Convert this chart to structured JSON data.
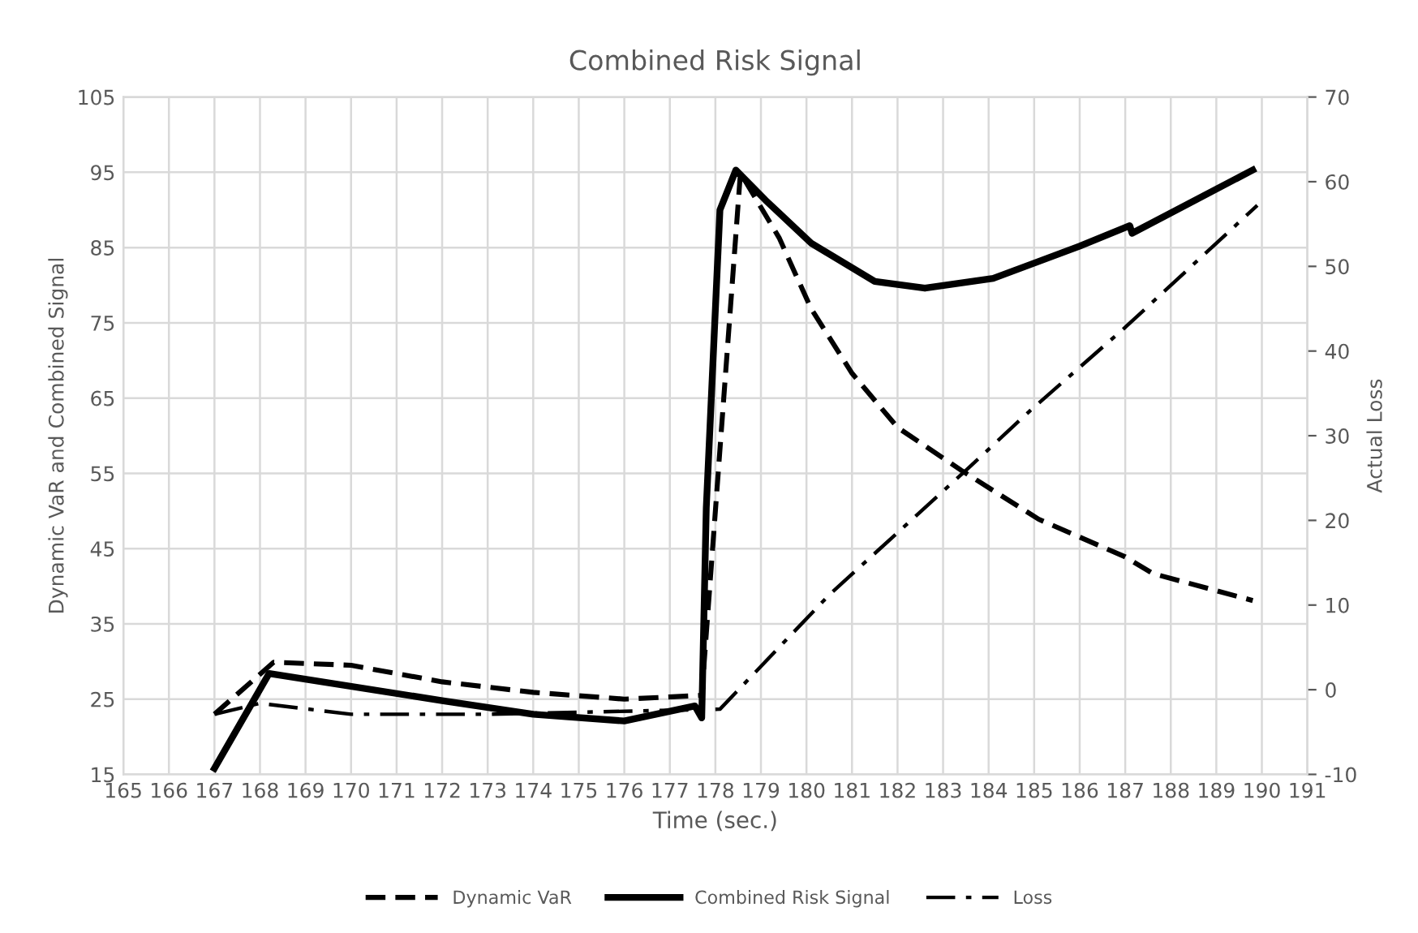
{
  "chart_data": {
    "type": "line",
    "title": "Combined Risk Signal",
    "xlabel": "Time (sec.)",
    "ylabel": "Dynamic VaR and Combined Signal",
    "y2label": "Actual Loss",
    "xlim": [
      165,
      191
    ],
    "xticks": [
      165,
      166,
      167,
      168,
      169,
      170,
      171,
      172,
      173,
      174,
      175,
      176,
      177,
      178,
      179,
      180,
      181,
      182,
      183,
      184,
      185,
      186,
      187,
      188,
      189,
      190,
      191
    ],
    "ylim": [
      15,
      105
    ],
    "yticks": [
      15,
      25,
      35,
      45,
      55,
      65,
      75,
      85,
      95,
      105
    ],
    "y2lim": [
      -10,
      70
    ],
    "y2ticks": [
      -10,
      0,
      10,
      20,
      30,
      40,
      50,
      60,
      70
    ],
    "grid": true,
    "legend": "bottom",
    "series": [
      {
        "name": "Dynamic VaR",
        "color": "#000000",
        "line_style": "dashed",
        "x": [
          167,
          168.3,
          170,
          172,
          174,
          176,
          177.7,
          178.55,
          179.4,
          180.1,
          181.0,
          182.0,
          183.4,
          185.1,
          187.0,
          187.6,
          189.8
        ],
        "values": [
          23,
          29.9,
          29.5,
          27.3,
          25.9,
          25,
          25.5,
          94.9,
          86.3,
          76.9,
          68.3,
          61.1,
          55.4,
          48.9,
          43.9,
          41.7,
          38.1
        ]
      },
      {
        "name": "Combined Risk Signal",
        "color": "#000000",
        "line_style": "solid",
        "x": [
          167,
          168.2,
          172,
          174,
          176,
          177.55,
          177.7,
          177.8,
          178.1,
          178.45,
          179.1,
          180.1,
          181.5,
          182.6,
          184.1,
          186.0,
          187.1,
          187.15,
          189.8
        ],
        "values": [
          15.8,
          28.4,
          24.8,
          23,
          22.1,
          24.1,
          22.5,
          50.4,
          90,
          95.3,
          91.3,
          85.6,
          80.5,
          79.6,
          80.9,
          85.2,
          87.9,
          86.9,
          95.3
        ]
      },
      {
        "name": "Loss",
        "color": "#000000",
        "line_style": "dashdot",
        "axis": "y2",
        "x": [
          167,
          168,
          170,
          173,
          178.1,
          180.5,
          183.5,
          184.9,
          187.0,
          189.9
        ],
        "values": [
          -2.9,
          -1.6,
          -2.9,
          -2.9,
          -2.3,
          11.2,
          25.9,
          32.9,
          42.8,
          57.2
        ]
      }
    ]
  }
}
